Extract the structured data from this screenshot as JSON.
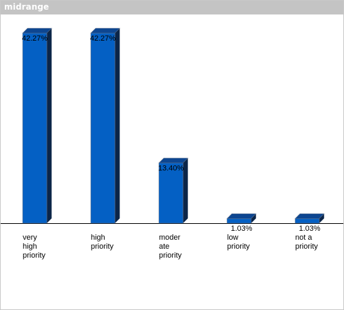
{
  "window": {
    "title": "midrange"
  },
  "chart_data": {
    "type": "bar",
    "title": "",
    "xlabel": "",
    "ylabel": "",
    "categories": [
      [
        "very",
        "high",
        "priority"
      ],
      [
        "high",
        "priority"
      ],
      [
        "moder",
        "ate",
        "priority"
      ],
      [
        "low",
        "priority"
      ],
      [
        "not a",
        "priority"
      ]
    ],
    "values": [
      42.27,
      42.27,
      13.4,
      1.03,
      1.03
    ],
    "value_labels": [
      "42.27%",
      "42.27%",
      "13.40%",
      "1.03%",
      "1.03%"
    ],
    "ylim": [
      0,
      42.27
    ],
    "grid": false,
    "legend": "none",
    "colors": {
      "bar_front": "#0460c4",
      "bar_top": "#0d4691",
      "bar_side": "#0b2548",
      "axis": "#000000",
      "titlebar": "#c4c4c4"
    }
  }
}
